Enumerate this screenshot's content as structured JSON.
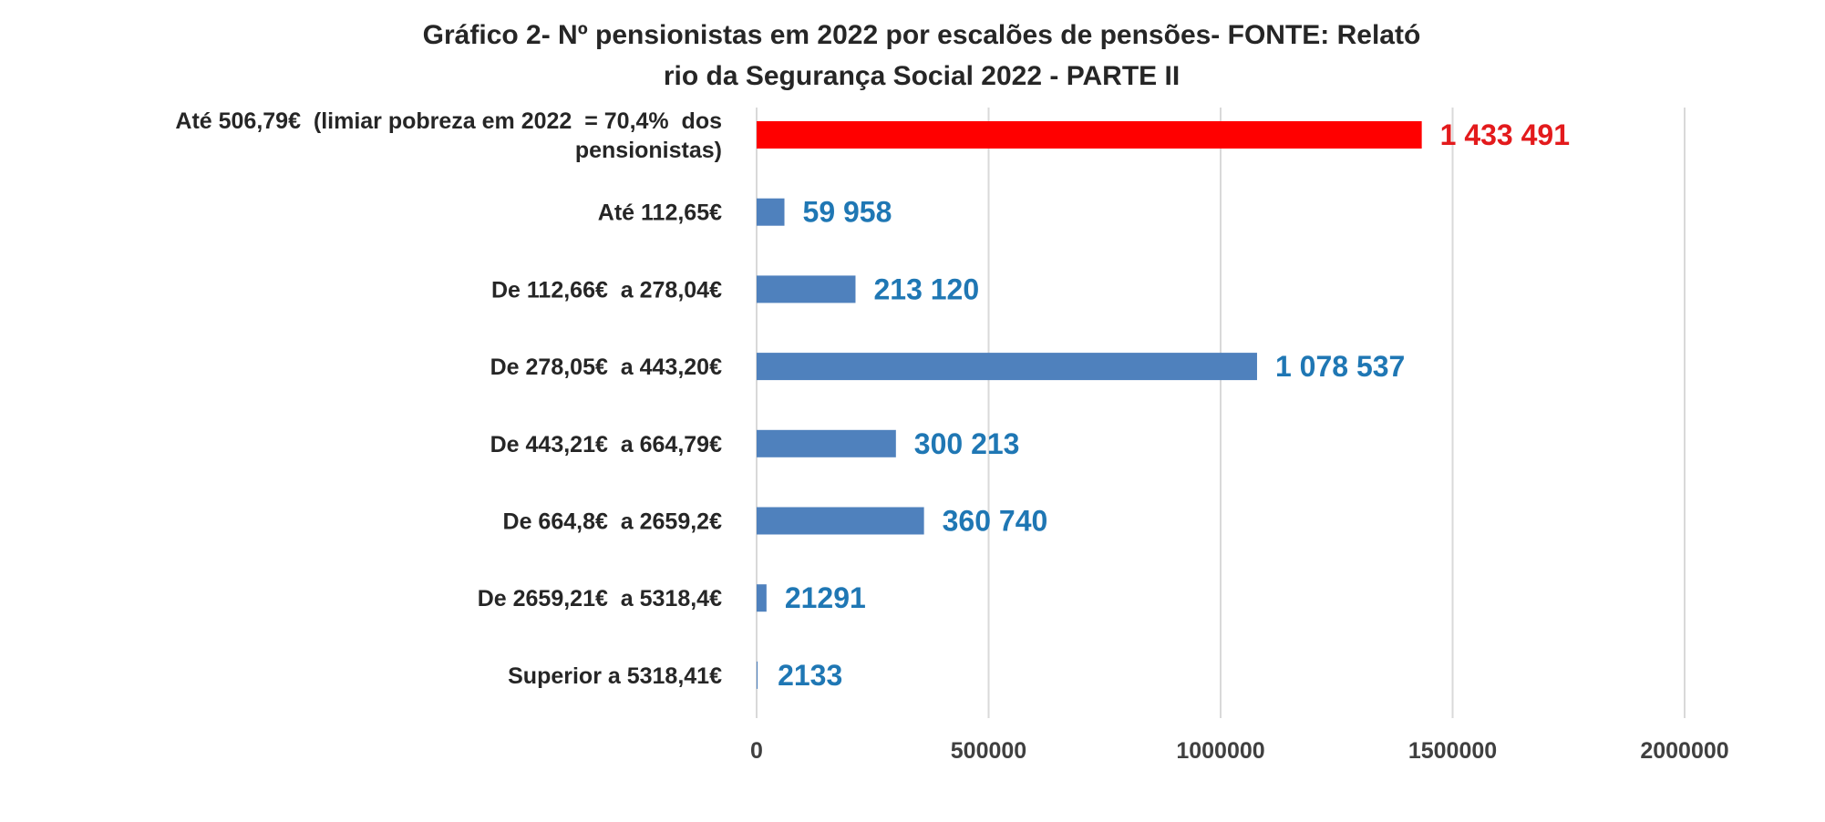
{
  "chart_data": {
    "type": "bar",
    "orientation": "horizontal",
    "title": "Gráfico 2- Nº pensionistas  em 2022 por escalões de pensões- FONTE: Relató",
    "title_line2": "rio da Segurança Social 2022 - PARTE II",
    "categories": [
      {
        "lines": [
          "Até 506,79€  (limiar pobreza em 2022  = 70,4%  dos",
          "pensionistas)"
        ]
      },
      {
        "lines": [
          "Até 112,65€"
        ]
      },
      {
        "lines": [
          "De 112,66€  a 278,04€"
        ]
      },
      {
        "lines": [
          "De 278,05€  a 443,20€"
        ]
      },
      {
        "lines": [
          "De 443,21€  a 664,79€"
        ]
      },
      {
        "lines": [
          "De 664,8€  a 2659,2€"
        ]
      },
      {
        "lines": [
          "De 2659,21€  a 5318,4€"
        ]
      },
      {
        "lines": [
          "Superior a 5318,41€"
        ]
      }
    ],
    "values": [
      1433491,
      59958,
      213120,
      1078537,
      300213,
      360740,
      21291,
      2133
    ],
    "data_labels": [
      "1 433 491",
      "59 958",
      "213 120",
      "1 078 537",
      "300 213",
      "360 740",
      "21291",
      "2133"
    ],
    "bar_colors": [
      "#ff0000",
      "#4f81bd",
      "#4f81bd",
      "#4f81bd",
      "#4f81bd",
      "#4f81bd",
      "#4f81bd",
      "#4f81bd"
    ],
    "label_colors": [
      "#e31a1c",
      "#1f77b4",
      "#1f77b4",
      "#1f77b4",
      "#1f77b4",
      "#1f77b4",
      "#1f77b4",
      "#1f77b4"
    ],
    "xlim": [
      0,
      2000000
    ],
    "x_ticks": [
      0,
      500000,
      1000000,
      1500000,
      2000000
    ],
    "x_tick_labels": [
      "0",
      "500000",
      "1000000",
      "1500000",
      "2000000"
    ],
    "grid": true,
    "legend": "none"
  }
}
